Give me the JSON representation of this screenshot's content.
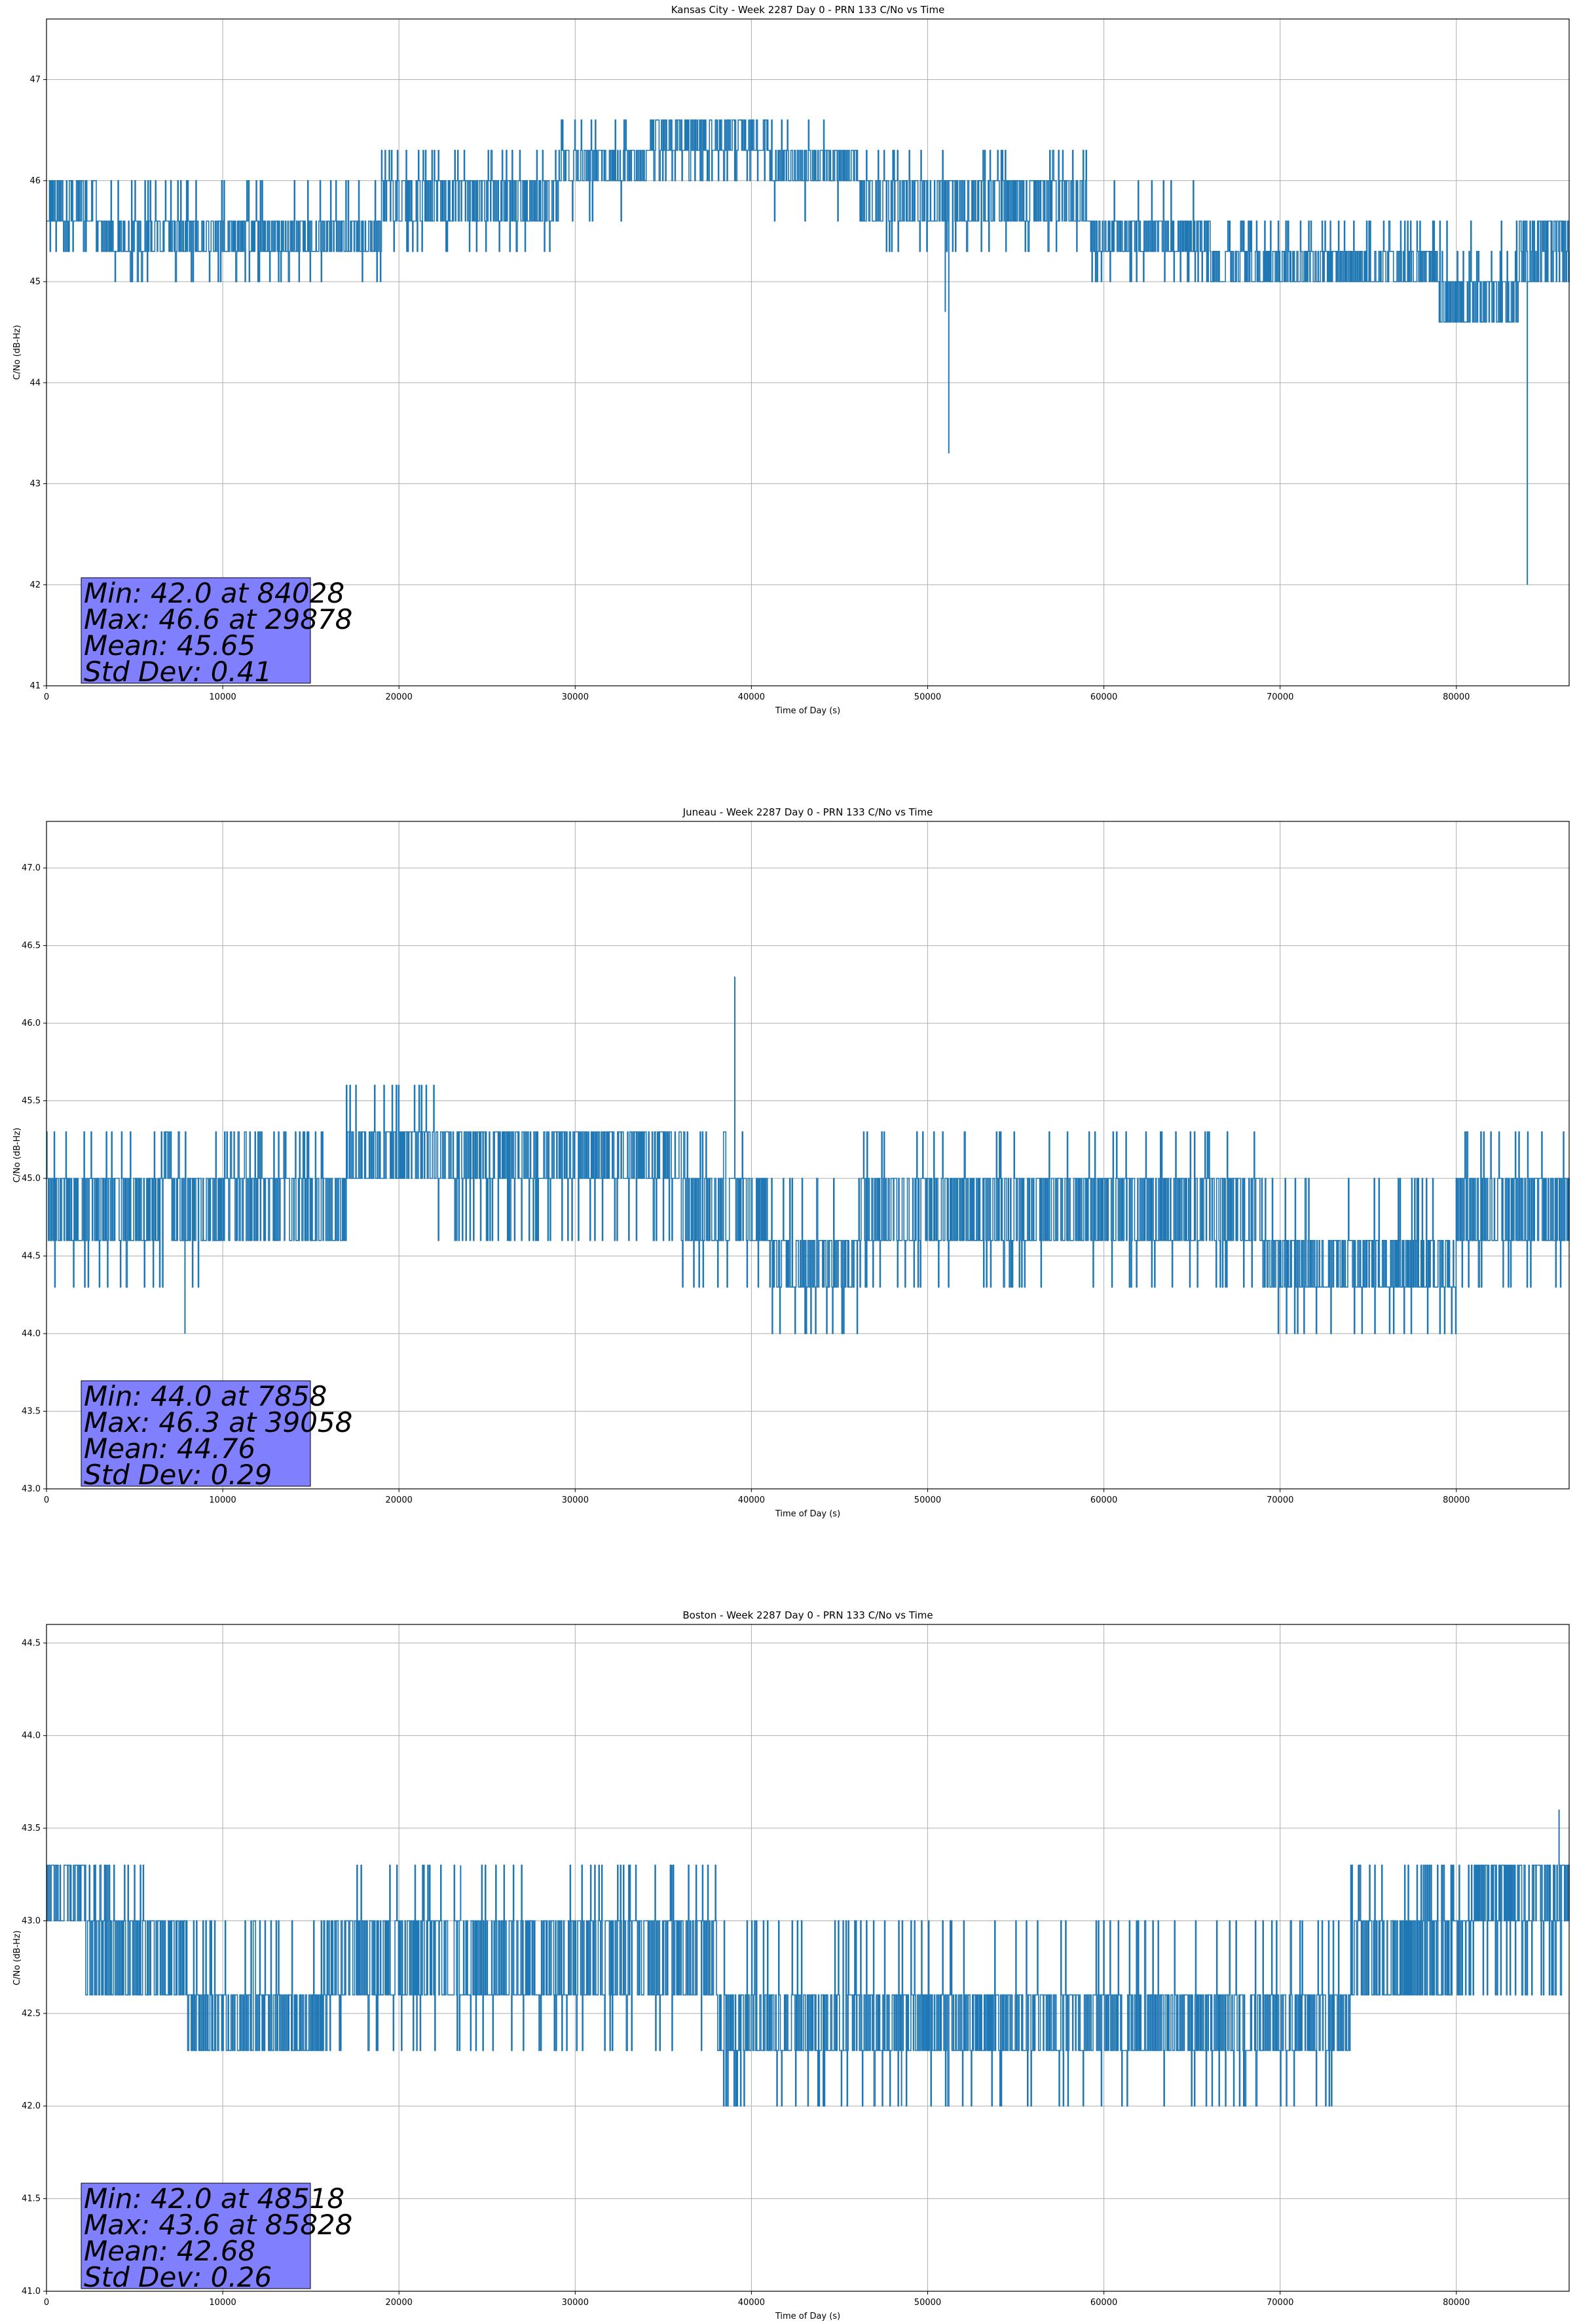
{
  "chart_data": [
    {
      "type": "line",
      "title": "Kansas City - Week 2287 Day 0 - PRN 133 C/No vs Time",
      "xlabel": "Time of Day (s)",
      "ylabel": "C/No (dB-Hz)",
      "xlim": [
        0,
        86400
      ],
      "ylim": [
        41,
        47.6
      ],
      "xticks": [
        0,
        10000,
        20000,
        30000,
        40000,
        50000,
        60000,
        70000,
        80000
      ],
      "yticks": [
        41,
        42,
        43,
        44,
        45,
        46,
        47
      ],
      "ytick_labels": [
        "41",
        "42",
        "43",
        "44",
        "45",
        "46",
        "47"
      ],
      "grid": true,
      "series_color": "#1f77b4",
      "quantization_step": 0.3,
      "segments": [
        {
          "x": [
            0,
            3000
          ],
          "levels": [
            45.6,
            46.0
          ],
          "spike_levels": [
            45.3
          ]
        },
        {
          "x": [
            3000,
            15000
          ],
          "levels": [
            45.3,
            45.6
          ],
          "spike_levels": [
            45.0,
            46.0
          ]
        },
        {
          "x": [
            15000,
            19000
          ],
          "levels": [
            45.3,
            45.6
          ],
          "spike_levels": [
            46.0,
            45.0
          ]
        },
        {
          "x": [
            19000,
            29000
          ],
          "levels": [
            45.6,
            46.0
          ],
          "spike_levels": [
            46.3,
            45.3
          ]
        },
        {
          "x": [
            29000,
            34000
          ],
          "levels": [
            46.0,
            46.3
          ],
          "spike_levels": [
            46.6,
            45.6
          ]
        },
        {
          "x": [
            34000,
            41000
          ],
          "levels": [
            46.3,
            46.6
          ],
          "spike_levels": [
            46.0
          ]
        },
        {
          "x": [
            41000,
            46000
          ],
          "levels": [
            46.0,
            46.3
          ],
          "spike_levels": [
            46.6,
            45.6
          ]
        },
        {
          "x": [
            46000,
            59000
          ],
          "levels": [
            45.6,
            46.0
          ],
          "spike_levels": [
            46.3,
            45.3
          ]
        },
        {
          "x": [
            59000,
            66000
          ],
          "levels": [
            45.3,
            45.6
          ],
          "spike_levels": [
            46.0,
            45.0
          ]
        },
        {
          "x": [
            66000,
            79000
          ],
          "levels": [
            45.0,
            45.3
          ],
          "spike_levels": [
            45.6
          ]
        },
        {
          "x": [
            79000,
            83500
          ],
          "levels": [
            44.6,
            45.0
          ],
          "spike_levels": [
            45.3,
            45.6
          ]
        },
        {
          "x": [
            83500,
            86400
          ],
          "levels": [
            45.0,
            45.6
          ],
          "spike_levels": [
            45.3
          ]
        }
      ],
      "outliers": [
        {
          "x": 51000,
          "y": 44.7
        },
        {
          "x": 51200,
          "y": 43.3
        },
        {
          "x": 84028,
          "y": 42.0
        }
      ],
      "stats": {
        "min": "Min: 42.0 at 84028",
        "max": "Max: 46.6 at 29878",
        "mean": "Mean: 45.65",
        "std": "Std Dev: 0.41"
      },
      "stats_box_color": "#8080ff"
    },
    {
      "type": "line",
      "title": "Juneau - Week 2287 Day 0 - PRN 133 C/No vs Time",
      "xlabel": "Time of Day (s)",
      "ylabel": "C/No (dB-Hz)",
      "xlim": [
        0,
        86400
      ],
      "ylim": [
        43,
        47.3
      ],
      "xticks": [
        0,
        10000,
        20000,
        30000,
        40000,
        50000,
        60000,
        70000,
        80000
      ],
      "yticks": [
        43.0,
        43.5,
        44.0,
        44.5,
        45.0,
        45.5,
        46.0,
        46.5,
        47.0
      ],
      "ytick_labels": [
        "43.0",
        "43.5",
        "44.0",
        "44.5",
        "45.0",
        "45.5",
        "46.0",
        "46.5",
        "47.0"
      ],
      "grid": true,
      "series_color": "#1f77b4",
      "quantization_step": 0.3,
      "segments": [
        {
          "x": [
            0,
            9000
          ],
          "levels": [
            44.6,
            45.0
          ],
          "spike_levels": [
            44.3,
            45.3
          ]
        },
        {
          "x": [
            9000,
            17000
          ],
          "levels": [
            44.6,
            45.0
          ],
          "spike_levels": [
            45.3
          ]
        },
        {
          "x": [
            17000,
            22000
          ],
          "levels": [
            45.0,
            45.3
          ],
          "spike_levels": [
            45.6
          ]
        },
        {
          "x": [
            22000,
            36000
          ],
          "levels": [
            45.0,
            45.3
          ],
          "spike_levels": [
            44.6
          ]
        },
        {
          "x": [
            36000,
            41000
          ],
          "levels": [
            44.6,
            45.0
          ],
          "spike_levels": [
            44.3,
            45.3
          ]
        },
        {
          "x": [
            41000,
            46000
          ],
          "levels": [
            44.3,
            44.6
          ],
          "spike_levels": [
            45.0,
            44.0
          ]
        },
        {
          "x": [
            46000,
            69000
          ],
          "levels": [
            44.6,
            45.0
          ],
          "spike_levels": [
            44.3,
            45.3
          ]
        },
        {
          "x": [
            69000,
            80000
          ],
          "levels": [
            44.3,
            44.6
          ],
          "spike_levels": [
            44.0,
            45.0
          ]
        },
        {
          "x": [
            80000,
            86400
          ],
          "levels": [
            44.6,
            45.0
          ],
          "spike_levels": [
            45.3,
            44.3
          ]
        }
      ],
      "outliers": [
        {
          "x": 7858,
          "y": 44.0
        },
        {
          "x": 39058,
          "y": 46.3
        }
      ],
      "stats": {
        "min": "Min: 44.0 at 7858",
        "max": "Max: 46.3 at 39058",
        "mean": "Mean: 44.76",
        "std": "Std Dev: 0.29"
      },
      "stats_box_color": "#8080ff"
    },
    {
      "type": "line",
      "title": "Boston - Week 2287 Day 0 - PRN 133 C/No vs Time",
      "xlabel": "Time of Day (s)",
      "ylabel": "C/No (dB-Hz)",
      "xlim": [
        0,
        86400
      ],
      "ylim": [
        41,
        44.6
      ],
      "xticks": [
        0,
        10000,
        20000,
        30000,
        40000,
        50000,
        60000,
        70000,
        80000
      ],
      "yticks": [
        41.0,
        41.5,
        42.0,
        42.5,
        43.0,
        43.5,
        44.0,
        44.5
      ],
      "ytick_labels": [
        "41.0",
        "41.5",
        "42.0",
        "42.5",
        "43.0",
        "43.5",
        "44.0",
        "44.5"
      ],
      "grid": true,
      "series_color": "#1f77b4",
      "quantization_step": 0.3,
      "segments": [
        {
          "x": [
            0,
            2000
          ],
          "levels": [
            43.0,
            43.3
          ],
          "spike_levels": []
        },
        {
          "x": [
            2000,
            6500
          ],
          "levels": [
            42.6,
            43.0
          ],
          "spike_levels": [
            43.3
          ]
        },
        {
          "x": [
            6500,
            8000
          ],
          "levels": [
            42.6,
            43.0
          ],
          "spike_levels": []
        },
        {
          "x": [
            8000,
            16000
          ],
          "levels": [
            42.3,
            42.6
          ],
          "spike_levels": [
            43.0
          ]
        },
        {
          "x": [
            16000,
            38000
          ],
          "levels": [
            42.6,
            43.0
          ],
          "spike_levels": [
            42.3,
            43.3
          ]
        },
        {
          "x": [
            38000,
            74000
          ],
          "levels": [
            42.3,
            42.6
          ],
          "spike_levels": [
            42.0,
            43.0
          ]
        },
        {
          "x": [
            74000,
            81000
          ],
          "levels": [
            42.6,
            43.0
          ],
          "spike_levels": [
            43.3
          ]
        },
        {
          "x": [
            81000,
            86400
          ],
          "levels": [
            43.0,
            43.3
          ],
          "spike_levels": [
            42.6
          ]
        }
      ],
      "outliers": [
        {
          "x": 23500,
          "y": 43.3
        },
        {
          "x": 48518,
          "y": 42.0
        },
        {
          "x": 85828,
          "y": 43.6
        }
      ],
      "stats": {
        "min": "Min: 42.0 at 48518",
        "max": "Max: 43.6 at 85828",
        "mean": "Mean: 42.68",
        "std": "Std Dev: 0.26"
      },
      "stats_box_color": "#8080ff"
    }
  ]
}
